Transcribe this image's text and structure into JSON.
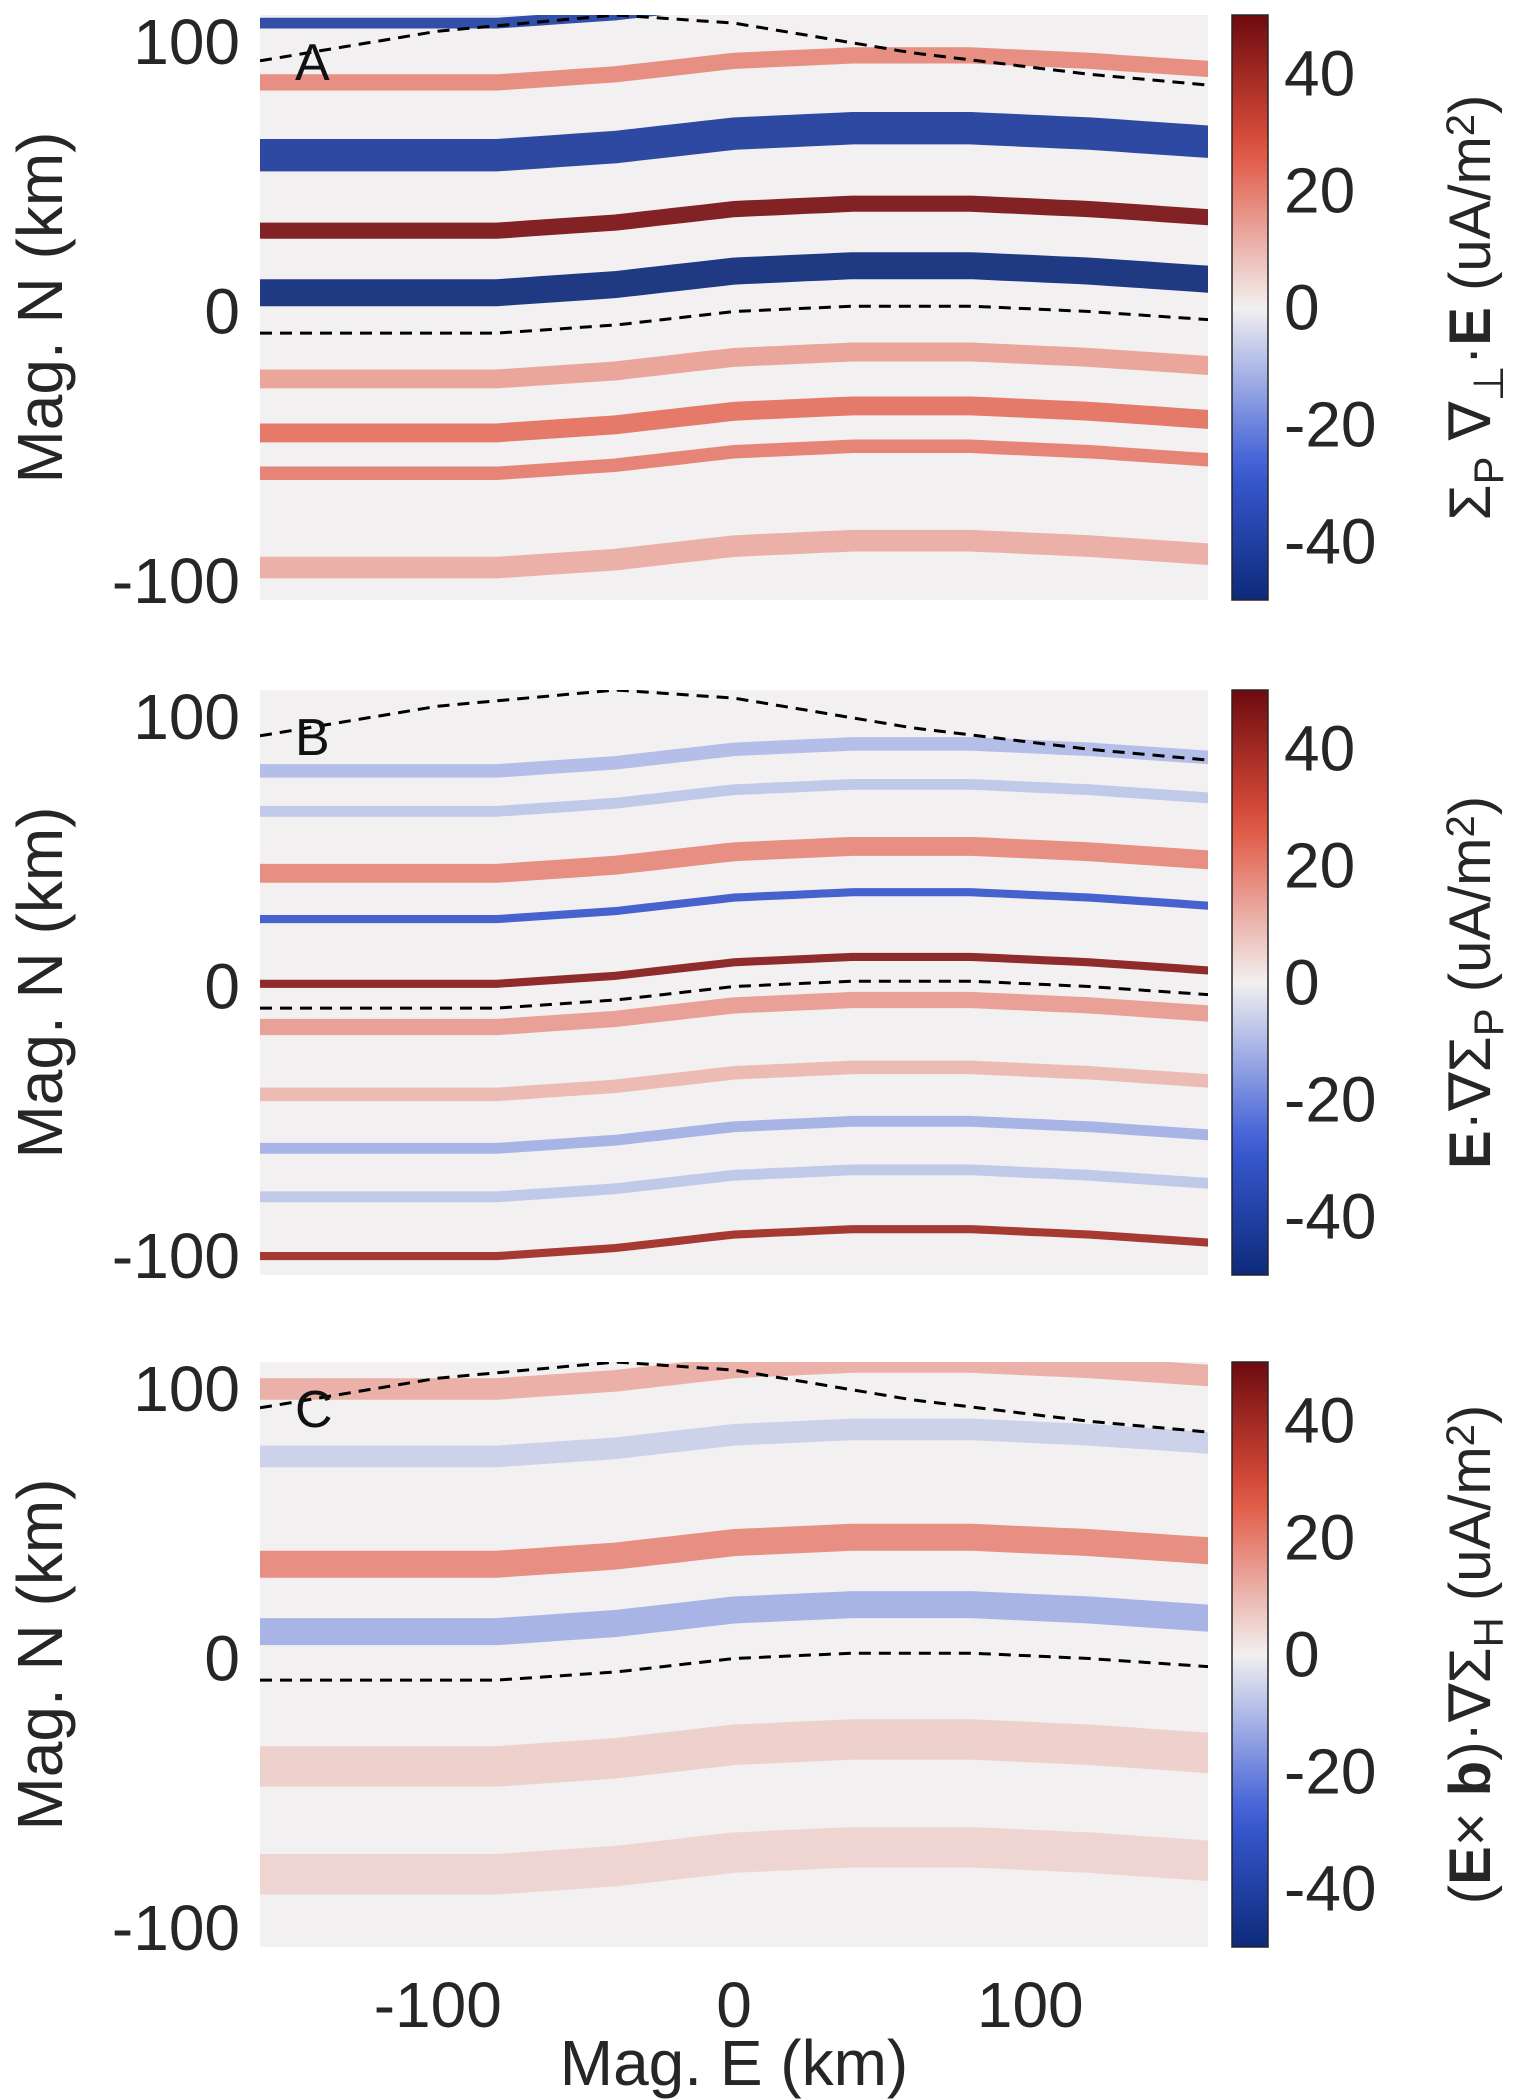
{
  "figure": {
    "xlabel": "Mag. E (km)",
    "ylabel": "Mag. N (km)",
    "xticks": [
      "-100",
      "0",
      "100"
    ],
    "yticks": [
      "100",
      "0",
      "-100"
    ],
    "cticks": [
      "40",
      "20",
      "0",
      "-20",
      "-40"
    ]
  },
  "panels": [
    {
      "letter": "A",
      "cbar_parts": [
        {
          "t": "Σ",
          "f": "n"
        },
        {
          "t": "P",
          "f": "sub"
        },
        {
          "t": " ∇",
          "f": "n"
        },
        {
          "t": "⊥",
          "f": "sub"
        },
        {
          "t": "·",
          "f": "n"
        },
        {
          "t": "E",
          "f": "b"
        },
        {
          "t": " (uA/m",
          "f": "n"
        },
        {
          "t": "2",
          "f": "sup"
        },
        {
          "t": ")",
          "f": "n"
        }
      ]
    },
    {
      "letter": "B",
      "cbar_parts": [
        {
          "t": "E",
          "f": "b"
        },
        {
          "t": "·∇Σ",
          "f": "n"
        },
        {
          "t": "P",
          "f": "sub"
        },
        {
          "t": " (uA/m",
          "f": "n"
        },
        {
          "t": "2",
          "f": "sup"
        },
        {
          "t": ")",
          "f": "n"
        }
      ]
    },
    {
      "letter": "C",
      "cbar_parts": [
        {
          "t": "(",
          "f": "n"
        },
        {
          "t": "E",
          "f": "b"
        },
        {
          "t": "× ",
          "f": "n"
        },
        {
          "t": "b",
          "f": "b"
        },
        {
          "t": ")·∇Σ",
          "f": "n"
        },
        {
          "t": "H",
          "f": "sub"
        },
        {
          "t": " (uA/m",
          "f": "n"
        },
        {
          "t": "2",
          "f": "sup"
        },
        {
          "t": ")",
          "f": "n"
        }
      ]
    }
  ],
  "colors": {
    "neg_max": "#0d2a7a",
    "neg_mid": "#3b5bd6",
    "zero": "#f2f0f0",
    "pos_mid": "#e0503c",
    "pos_max": "#6e0a0f",
    "contour": "#000000"
  },
  "chart_data": [
    {
      "type": "heatmap",
      "panel": "A",
      "xlim": [
        -160,
        160
      ],
      "ylim": [
        -107,
        110
      ],
      "clim": [
        -50,
        50
      ],
      "colormap": "blue-white-red",
      "contour_upper": {
        "x": [
          -160,
          -100,
          -40,
          0,
          60,
          120,
          160
        ],
        "y": [
          93,
          104,
          110,
          107,
          96,
          88,
          84
        ]
      },
      "contour_lower": {
        "x": [
          -160,
          -120,
          -80,
          -40,
          0,
          40,
          80,
          120,
          160
        ],
        "y": [
          -8,
          -8,
          -8,
          -5,
          0,
          2,
          2,
          0,
          -3
        ]
      },
      "bands": [
        {
          "N": 107,
          "value": -40,
          "width": 4
        },
        {
          "N": 85,
          "value": 18,
          "width": 6
        },
        {
          "N": 58,
          "value": -42,
          "width": 12
        },
        {
          "N": 30,
          "value": 48,
          "width": 6
        },
        {
          "N": 7,
          "value": -50,
          "width": 10
        },
        {
          "N": -25,
          "value": 14,
          "width": 7
        },
        {
          "N": -45,
          "value": 22,
          "width": 7
        },
        {
          "N": -60,
          "value": 20,
          "width": 5
        },
        {
          "N": -95,
          "value": 12,
          "width": 8
        }
      ]
    },
    {
      "type": "heatmap",
      "panel": "B",
      "xlim": [
        -160,
        160
      ],
      "ylim": [
        -107,
        110
      ],
      "clim": [
        -50,
        50
      ],
      "colormap": "blue-white-red",
      "contour_upper": {
        "x": [
          -160,
          -100,
          -40,
          0,
          60,
          120,
          160
        ],
        "y": [
          93,
          104,
          110,
          107,
          96,
          88,
          84
        ]
      },
      "contour_lower": {
        "x": [
          -160,
          -120,
          -80,
          -40,
          0,
          40,
          80,
          120,
          160
        ],
        "y": [
          -8,
          -8,
          -8,
          -5,
          0,
          2,
          2,
          0,
          -3
        ]
      },
      "bands": [
        {
          "N": 80,
          "value": -10,
          "width": 5
        },
        {
          "N": 65,
          "value": -8,
          "width": 4
        },
        {
          "N": 42,
          "value": 18,
          "width": 7
        },
        {
          "N": 25,
          "value": -30,
          "width": 3
        },
        {
          "N": 1,
          "value": 45,
          "width": 3
        },
        {
          "N": -15,
          "value": 15,
          "width": 6
        },
        {
          "N": -40,
          "value": 10,
          "width": 5
        },
        {
          "N": -60,
          "value": -12,
          "width": 4
        },
        {
          "N": -78,
          "value": -8,
          "width": 4
        },
        {
          "N": -100,
          "value": 40,
          "width": 3
        }
      ]
    },
    {
      "type": "heatmap",
      "panel": "C",
      "xlim": [
        -160,
        160
      ],
      "ylim": [
        -107,
        110
      ],
      "clim": [
        -50,
        50
      ],
      "colormap": "blue-white-red",
      "contour_upper": {
        "x": [
          -160,
          -100,
          -40,
          0,
          60,
          120,
          160
        ],
        "y": [
          93,
          104,
          110,
          107,
          96,
          88,
          84
        ]
      },
      "contour_lower": {
        "x": [
          -160,
          -120,
          -80,
          -40,
          0,
          40,
          80,
          120,
          160
        ],
        "y": [
          -8,
          -8,
          -8,
          -5,
          0,
          2,
          2,
          0,
          -3
        ]
      },
      "bands": [
        {
          "N": 100,
          "value": 12,
          "width": 8
        },
        {
          "N": 75,
          "value": -6,
          "width": 8
        },
        {
          "N": 35,
          "value": 18,
          "width": 10
        },
        {
          "N": 10,
          "value": -12,
          "width": 10
        },
        {
          "N": -40,
          "value": 6,
          "width": 15
        },
        {
          "N": -80,
          "value": 5,
          "width": 15
        }
      ]
    }
  ]
}
